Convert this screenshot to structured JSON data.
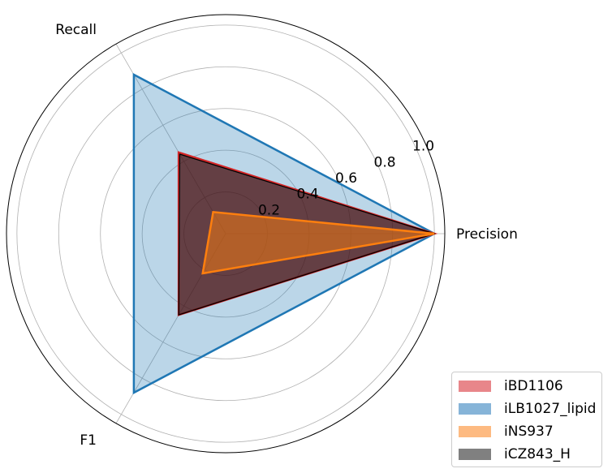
{
  "chart_data": {
    "type": "radar",
    "axes": [
      "Precision",
      "Recall",
      "F1"
    ],
    "rticks": [
      {
        "value": 0.2,
        "label": "0.2"
      },
      {
        "value": 0.4,
        "label": "0.4"
      },
      {
        "value": 0.6,
        "label": "0.6"
      },
      {
        "value": 0.8,
        "label": "0.8"
      },
      {
        "value": 1.0,
        "label": "1.0"
      }
    ],
    "rlim": [
      0,
      1.05
    ],
    "grid": true,
    "legend_position": "lower-right",
    "series": [
      {
        "name": "iLB1027_lipid",
        "values": [
          1.0,
          0.88,
          0.88
        ],
        "color": "#1f77b4",
        "fill": "#1f77b4",
        "fill_opacity": 0.3,
        "stroke_width": 2.5
      },
      {
        "name": "iBD1106",
        "values": [
          1.0,
          0.45,
          0.45
        ],
        "color": "#d62728",
        "fill": "#d62728",
        "fill_opacity": 0.5,
        "stroke_width": 2.5
      },
      {
        "name": "iCZ843_H",
        "values": [
          1.0,
          0.44,
          0.45
        ],
        "color": "#000000",
        "fill": "#000000",
        "fill_opacity": 0.5,
        "stroke_width": 1.2
      },
      {
        "name": "iNS937",
        "values": [
          1.0,
          0.12,
          0.22
        ],
        "color": "#ff7f0e",
        "fill": "#ff7f0e",
        "fill_opacity": 0.5,
        "stroke_width": 2.5
      }
    ]
  },
  "legend": [
    {
      "label": "iBD1106",
      "color": "#e8868a"
    },
    {
      "label": "iLB1027_lipid",
      "color": "#86b4d8"
    },
    {
      "label": "iNS937",
      "color": "#fdba81"
    },
    {
      "label": "iCZ843_H",
      "color": "#808080"
    }
  ]
}
